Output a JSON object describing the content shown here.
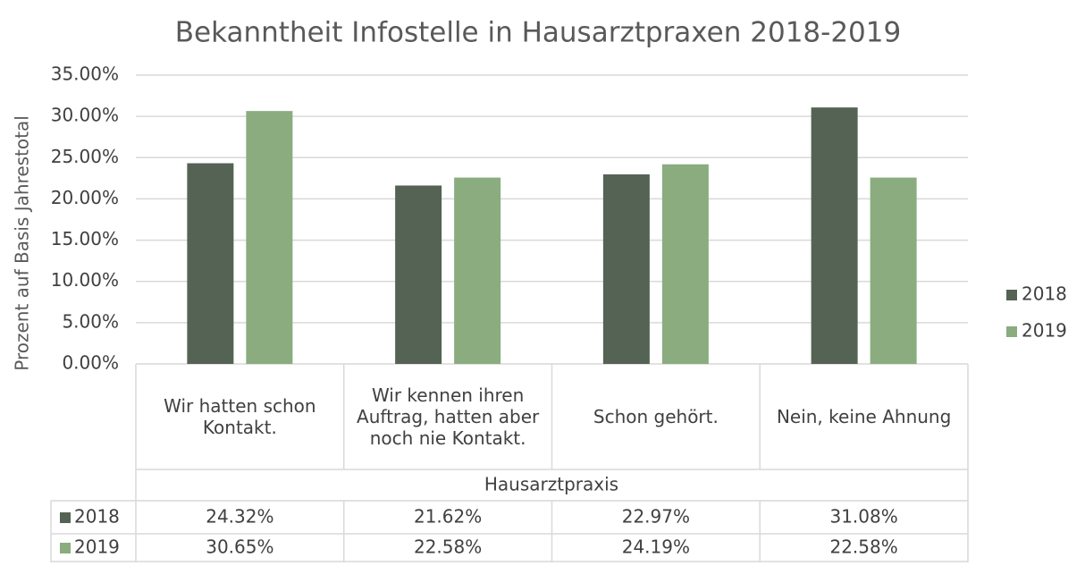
{
  "chart_data": {
    "type": "bar",
    "title": "Bekanntheit Infostelle in Hausarztpraxen 2018-2019",
    "y_label": "Prozent auf Basis Jahrestotal",
    "x_label": "Hausarztpraxis",
    "categories": [
      "Wir hatten schon Kontakt.",
      "Wir kennen ihren Auftrag, hatten aber noch nie Kontakt.",
      "Schon gehört.",
      "Nein, keine Ahnung"
    ],
    "series": [
      {
        "name": "2018",
        "color": "#546354",
        "values": [
          24.32,
          21.62,
          22.97,
          31.08
        ],
        "value_labels": [
          "24.32%",
          "21.62%",
          "22.97%",
          "31.08%"
        ]
      },
      {
        "name": "2019",
        "color": "#8aac7f",
        "values": [
          30.65,
          22.58,
          24.19,
          22.58
        ],
        "value_labels": [
          "30.65%",
          "22.58%",
          "24.19%",
          "22.58%"
        ]
      }
    ],
    "ylim": [
      0,
      35
    ],
    "yticks": [
      {
        "value": 0,
        "label": "0.00%"
      },
      {
        "value": 5,
        "label": "5.00%"
      },
      {
        "value": 10,
        "label": "10.00%"
      },
      {
        "value": 15,
        "label": "15.00%"
      },
      {
        "value": 20,
        "label": "20.00%"
      },
      {
        "value": 25,
        "label": "25.00%"
      },
      {
        "value": 30,
        "label": "30.00%"
      },
      {
        "value": 35,
        "label": "35.00%"
      }
    ],
    "grid": true,
    "legend": "right"
  }
}
